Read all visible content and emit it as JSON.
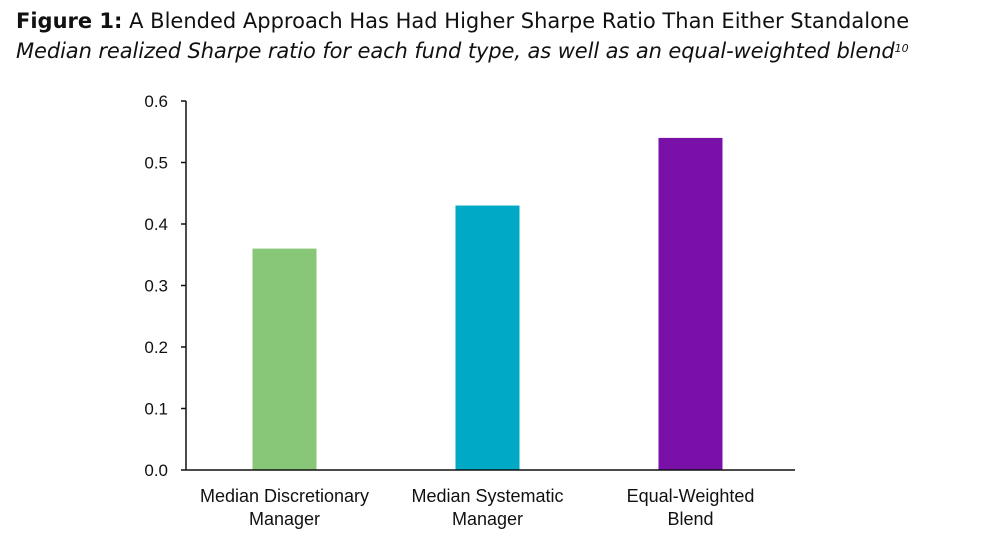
{
  "figure": {
    "label": "Figure 1:",
    "title": " A Blended Approach Has Had Higher Sharpe Ratio Than Either Standalone",
    "subtitle": "Median realized Sharpe ratio for each fund type, as well as an equal-weighted blend",
    "footnote_ref": "10"
  },
  "chart_data": {
    "type": "bar",
    "categories": [
      [
        "Median Discretionary",
        "Manager"
      ],
      [
        "Median Systematic",
        "Manager"
      ],
      [
        "Equal-Weighted",
        "Blend"
      ]
    ],
    "values": [
      0.36,
      0.43,
      0.54
    ],
    "colors": [
      "#88c777",
      "#00aac6",
      "#7910a8"
    ],
    "ylim": [
      0,
      0.6
    ],
    "yticks": [
      "0.0",
      "0.1",
      "0.2",
      "0.3",
      "0.4",
      "0.5",
      "0.6"
    ],
    "grid": false,
    "legend": "none"
  }
}
